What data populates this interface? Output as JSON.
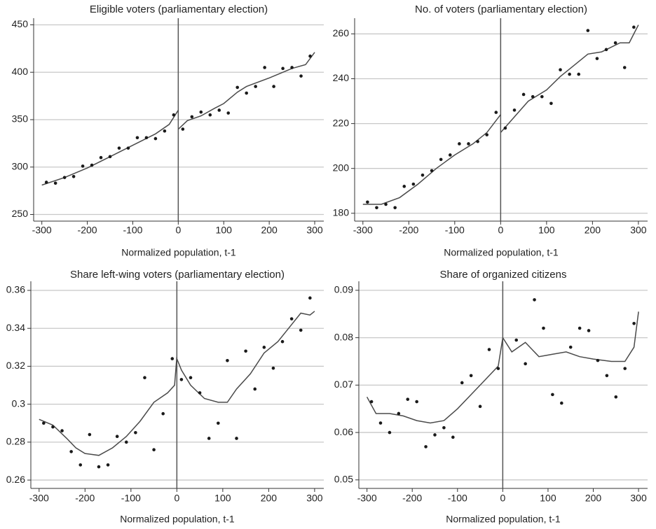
{
  "chart_data": [
    {
      "type": "scatter",
      "title": "Eligible voters (parliamentary election)",
      "xlabel": "Normalized population, t-1",
      "x": [
        -290,
        -270,
        -250,
        -230,
        -210,
        -190,
        -170,
        -150,
        -130,
        -110,
        -90,
        -70,
        -50,
        -30,
        -10,
        10,
        30,
        50,
        70,
        90,
        110,
        130,
        150,
        170,
        190,
        210,
        230,
        250,
        270,
        290
      ],
      "values": [
        284,
        283,
        289,
        290,
        301,
        302,
        310,
        311,
        320,
        320,
        331,
        331,
        330,
        338,
        355,
        340,
        353,
        358,
        355,
        360,
        357,
        384,
        378,
        385,
        405,
        385,
        404,
        405,
        396,
        417
      ],
      "fit": [
        {
          "x": [
            -300,
            -250,
            -200,
            -150,
            -100,
            -50,
            -20,
            0
          ],
          "values": [
            281,
            289,
            299,
            311,
            323,
            335,
            345,
            360
          ]
        },
        {
          "x": [
            0,
            20,
            50,
            80,
            100,
            130,
            150,
            200,
            250,
            280,
            300
          ],
          "values": [
            340,
            349,
            354,
            362,
            367,
            379,
            385,
            394,
            404,
            408,
            421
          ]
        }
      ],
      "cutoff": 0,
      "xlim": [
        -318,
        320
      ],
      "ylim": [
        243,
        457
      ],
      "xticks": [
        -300,
        -200,
        -100,
        0,
        100,
        200,
        300
      ],
      "yticks": [
        250,
        300,
        350,
        400,
        450
      ],
      "grid": true,
      "color": "#1a1a1a",
      "line_color": "#4a4a4a"
    },
    {
      "type": "scatter",
      "title": "No. of voters (parliamentary election)",
      "xlabel": "Normalized population, t-1",
      "x": [
        -290,
        -270,
        -250,
        -230,
        -210,
        -190,
        -170,
        -150,
        -130,
        -110,
        -90,
        -70,
        -50,
        -30,
        -10,
        10,
        30,
        50,
        70,
        90,
        110,
        130,
        150,
        170,
        190,
        210,
        230,
        250,
        270,
        290
      ],
      "values": [
        185,
        182.5,
        184,
        182.5,
        192,
        193,
        197,
        199,
        204,
        206,
        211,
        211,
        212,
        215,
        225,
        218,
        226,
        233,
        232,
        232,
        229,
        244,
        242,
        242,
        261.5,
        249,
        253,
        256,
        245,
        263
      ],
      "fit": [
        {
          "x": [
            -300,
            -260,
            -220,
            -180,
            -140,
            -100,
            -60,
            -30,
            0
          ],
          "values": [
            184,
            184,
            187,
            193,
            200,
            206,
            211,
            216,
            224
          ]
        },
        {
          "x": [
            0,
            30,
            60,
            100,
            130,
            160,
            190,
            220,
            260,
            280,
            300
          ],
          "values": [
            216,
            223,
            230,
            235,
            241,
            246,
            251,
            252,
            256,
            256,
            264
          ]
        }
      ],
      "cutoff": 0,
      "xlim": [
        -318,
        320
      ],
      "ylim": [
        176.5,
        267
      ],
      "xticks": [
        -300,
        -200,
        -100,
        0,
        100,
        200,
        300
      ],
      "yticks": [
        180,
        200,
        220,
        240,
        260
      ],
      "grid": true,
      "color": "#1a1a1a",
      "line_color": "#4a4a4a"
    },
    {
      "type": "scatter",
      "title": "Share left-wing voters (parliamentary election)",
      "xlabel": "Normalized population, t-1",
      "x": [
        -290,
        -270,
        -250,
        -230,
        -210,
        -190,
        -170,
        -150,
        -130,
        -110,
        -90,
        -70,
        -50,
        -30,
        -10,
        10,
        30,
        50,
        70,
        90,
        110,
        130,
        150,
        170,
        190,
        210,
        230,
        250,
        270,
        290
      ],
      "values": [
        0.29,
        0.288,
        0.286,
        0.275,
        0.268,
        0.284,
        0.267,
        0.268,
        0.283,
        0.28,
        0.285,
        0.314,
        0.276,
        0.295,
        0.324,
        0.313,
        0.314,
        0.306,
        0.282,
        0.29,
        0.323,
        0.282,
        0.328,
        0.308,
        0.33,
        0.319,
        0.333,
        0.345,
        0.339,
        0.356
      ],
      "fit": [
        {
          "x": [
            -300,
            -270,
            -240,
            -220,
            -200,
            -170,
            -140,
            -110,
            -80,
            -50,
            -20,
            -5,
            0
          ],
          "values": [
            0.292,
            0.289,
            0.282,
            0.277,
            0.274,
            0.273,
            0.277,
            0.283,
            0.291,
            0.301,
            0.306,
            0.31,
            0.325
          ]
        },
        {
          "x": [
            0,
            10,
            30,
            60,
            90,
            110,
            130,
            160,
            190,
            220,
            250,
            270,
            290,
            300
          ],
          "values": [
            0.324,
            0.318,
            0.31,
            0.303,
            0.301,
            0.301,
            0.308,
            0.316,
            0.327,
            0.333,
            0.342,
            0.348,
            0.347,
            0.349
          ]
        }
      ],
      "cutoff": 0,
      "xlim": [
        -318,
        320
      ],
      "ylim": [
        0.2556,
        0.3648
      ],
      "xticks": [
        -300,
        -200,
        -100,
        0,
        100,
        200,
        300
      ],
      "yticks": [
        0.26,
        0.28,
        0.3,
        0.32,
        0.34,
        0.36
      ],
      "grid": true,
      "color": "#1a1a1a",
      "line_color": "#4a4a4a"
    },
    {
      "type": "scatter",
      "title": "Share of organized citizens",
      "xlabel": "Normalized population, t-1",
      "x": [
        -290,
        -270,
        -250,
        -230,
        -210,
        -190,
        -170,
        -150,
        -130,
        -110,
        -90,
        -70,
        -50,
        -30,
        -10,
        30,
        50,
        70,
        90,
        110,
        130,
        150,
        170,
        190,
        210,
        230,
        250,
        270,
        290
      ],
      "values": [
        0.0665,
        0.062,
        0.06,
        0.064,
        0.067,
        0.0665,
        0.057,
        0.0595,
        0.061,
        0.059,
        0.0705,
        0.072,
        0.0655,
        0.0775,
        0.0735,
        0.0795,
        0.0745,
        0.088,
        0.082,
        0.068,
        0.0662,
        0.078,
        0.082,
        0.0815,
        0.0752,
        0.072,
        0.0675,
        0.0735,
        0.083
      ],
      "fit": [
        {
          "x": [
            -300,
            -280,
            -250,
            -220,
            -190,
            -160,
            -130,
            -100,
            -70,
            -40,
            -10,
            0
          ],
          "values": [
            0.0675,
            0.064,
            0.064,
            0.0635,
            0.0625,
            0.062,
            0.0625,
            0.065,
            0.068,
            0.071,
            0.074,
            0.08
          ]
        },
        {
          "x": [
            0,
            20,
            50,
            80,
            110,
            140,
            170,
            200,
            240,
            270,
            290,
            300
          ],
          "values": [
            0.08,
            0.077,
            0.079,
            0.076,
            0.0765,
            0.077,
            0.076,
            0.0755,
            0.075,
            0.075,
            0.078,
            0.0855
          ]
        }
      ],
      "cutoff": 0,
      "xlim": [
        -318,
        320
      ],
      "ylim": [
        0.0482,
        0.0919
      ],
      "xticks": [
        -300,
        -200,
        -100,
        0,
        100,
        200,
        300
      ],
      "yticks": [
        0.05,
        0.06,
        0.07,
        0.08,
        0.09
      ],
      "grid": true,
      "color": "#1a1a1a",
      "line_color": "#4a4a4a"
    }
  ]
}
